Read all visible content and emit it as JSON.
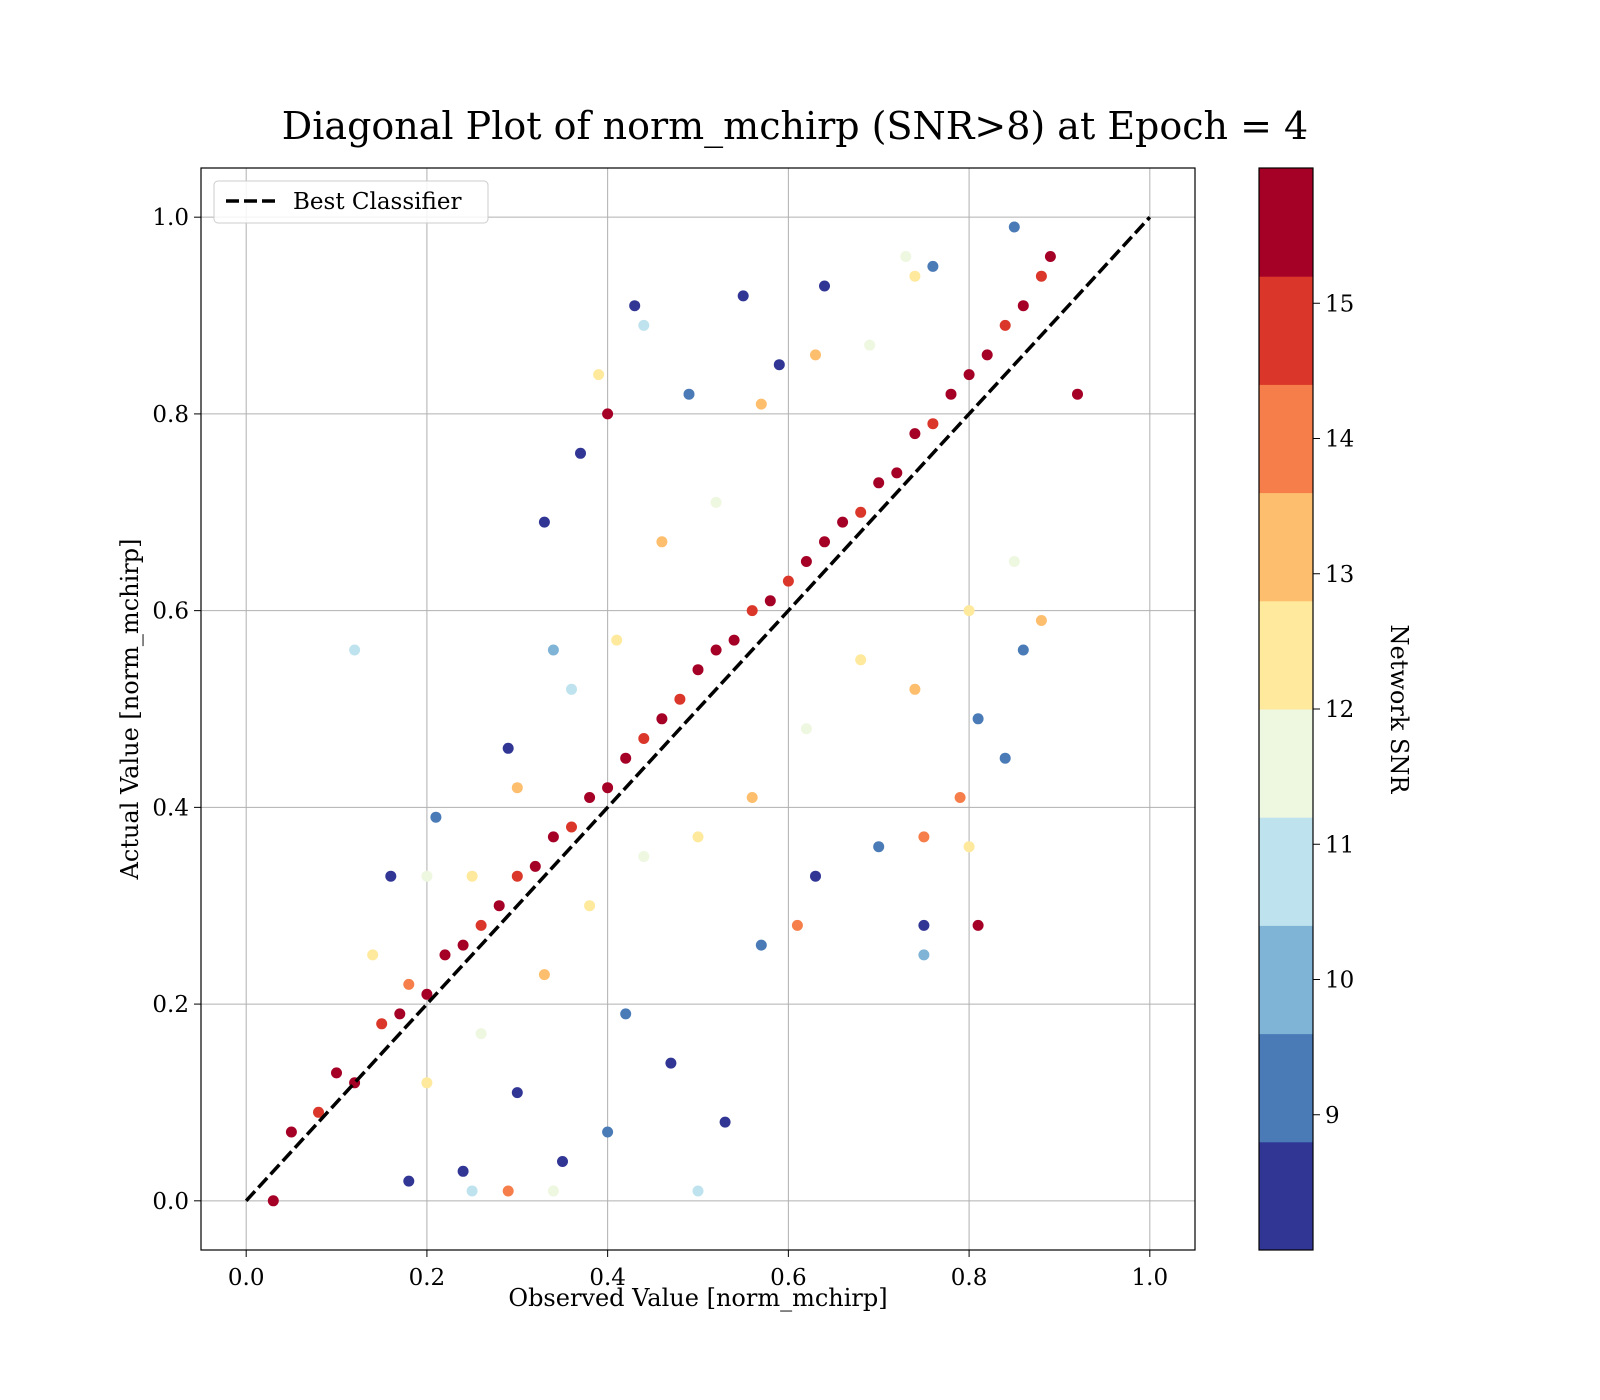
{
  "chart_data": {
    "type": "scatter",
    "title": "Diagonal Plot of norm_mchirp (SNR>8) at Epoch = 4",
    "xlabel": "Observed Value [norm_mchirp]",
    "ylabel": "Actual Value [norm_mchirp]",
    "xlim": [
      -0.05,
      1.05
    ],
    "ylim": [
      -0.05,
      1.05
    ],
    "x_ticks": [
      "0.0",
      "0.2",
      "0.4",
      "0.6",
      "0.8",
      "1.0"
    ],
    "y_ticks": [
      "0.0",
      "0.2",
      "0.4",
      "0.6",
      "0.8",
      "1.0"
    ],
    "grid": true,
    "legend": {
      "position": "top-left",
      "entries": [
        "Best Classifier"
      ]
    },
    "reference_line": {
      "name": "Best Classifier",
      "from": [
        0.0,
        0.0
      ],
      "to": [
        1.0,
        1.0
      ],
      "style": "dashed",
      "color": "#000000"
    },
    "colorbar": {
      "label": "Network SNR",
      "range": [
        8.0,
        16.0
      ],
      "tick_labels": [
        "9",
        "10",
        "11",
        "12",
        "13",
        "14",
        "15"
      ],
      "bands": [
        "#313695",
        "#4a7bb7",
        "#80b4d6",
        "#bfe3ee",
        "#eef7e0",
        "#fee99d",
        "#fdbe6e",
        "#f67e4b",
        "#da372a",
        "#a50026"
      ]
    },
    "series": [
      {
        "columns": [
          "x",
          "y",
          "snr"
        ],
        "points": [
          [
            0.03,
            0.0,
            15.5
          ],
          [
            0.05,
            0.07,
            15.2
          ],
          [
            0.08,
            0.09,
            14.6
          ],
          [
            0.1,
            0.13,
            15.5
          ],
          [
            0.12,
            0.12,
            15.8
          ],
          [
            0.15,
            0.18,
            15.1
          ],
          [
            0.17,
            0.19,
            15.6
          ],
          [
            0.18,
            0.22,
            14.2
          ],
          [
            0.2,
            0.21,
            15.7
          ],
          [
            0.22,
            0.25,
            15.3
          ],
          [
            0.24,
            0.26,
            15.9
          ],
          [
            0.26,
            0.28,
            14.8
          ],
          [
            0.28,
            0.3,
            15.5
          ],
          [
            0.3,
            0.33,
            15.1
          ],
          [
            0.32,
            0.34,
            15.8
          ],
          [
            0.34,
            0.37,
            15.4
          ],
          [
            0.36,
            0.38,
            14.5
          ],
          [
            0.38,
            0.41,
            15.9
          ],
          [
            0.4,
            0.42,
            15.2
          ],
          [
            0.42,
            0.45,
            15.7
          ],
          [
            0.44,
            0.47,
            15.0
          ],
          [
            0.46,
            0.49,
            15.6
          ],
          [
            0.48,
            0.51,
            14.9
          ],
          [
            0.5,
            0.54,
            15.8
          ],
          [
            0.52,
            0.56,
            15.3
          ],
          [
            0.54,
            0.57,
            15.9
          ],
          [
            0.56,
            0.6,
            15.1
          ],
          [
            0.58,
            0.61,
            15.6
          ],
          [
            0.6,
            0.63,
            14.7
          ],
          [
            0.62,
            0.65,
            15.8
          ],
          [
            0.64,
            0.67,
            15.4
          ],
          [
            0.66,
            0.69,
            15.9
          ],
          [
            0.68,
            0.7,
            14.8
          ],
          [
            0.7,
            0.73,
            15.5
          ],
          [
            0.72,
            0.74,
            15.2
          ],
          [
            0.74,
            0.78,
            15.7
          ],
          [
            0.76,
            0.79,
            14.9
          ],
          [
            0.78,
            0.82,
            15.6
          ],
          [
            0.8,
            0.84,
            15.3
          ],
          [
            0.82,
            0.86,
            15.8
          ],
          [
            0.84,
            0.89,
            14.6
          ],
          [
            0.86,
            0.91,
            15.5
          ],
          [
            0.88,
            0.94,
            15.1
          ],
          [
            0.89,
            0.96,
            15.7
          ],
          [
            0.14,
            0.25,
            12.4
          ],
          [
            0.2,
            0.33,
            11.5
          ],
          [
            0.25,
            0.33,
            12.2
          ],
          [
            0.3,
            0.42,
            13.1
          ],
          [
            0.36,
            0.52,
            11.2
          ],
          [
            0.41,
            0.57,
            12.6
          ],
          [
            0.46,
            0.67,
            13.4
          ],
          [
            0.52,
            0.71,
            11.6
          ],
          [
            0.57,
            0.81,
            12.8
          ],
          [
            0.63,
            0.86,
            13.0
          ],
          [
            0.69,
            0.87,
            11.4
          ],
          [
            0.74,
            0.94,
            12.5
          ],
          [
            0.2,
            0.12,
            12.3
          ],
          [
            0.26,
            0.17,
            11.4
          ],
          [
            0.33,
            0.23,
            13.2
          ],
          [
            0.38,
            0.3,
            12.1
          ],
          [
            0.44,
            0.35,
            11.3
          ],
          [
            0.5,
            0.37,
            12.7
          ],
          [
            0.56,
            0.41,
            13.3
          ],
          [
            0.62,
            0.48,
            11.7
          ],
          [
            0.68,
            0.55,
            12.4
          ],
          [
            0.74,
            0.52,
            13.1
          ],
          [
            0.8,
            0.6,
            12.2
          ],
          [
            0.85,
            0.65,
            11.6
          ],
          [
            0.88,
            0.59,
            12.9
          ],
          [
            0.16,
            0.33,
            8.3
          ],
          [
            0.21,
            0.39,
            9.4
          ],
          [
            0.29,
            0.46,
            8.6
          ],
          [
            0.33,
            0.69,
            8.2
          ],
          [
            0.37,
            0.76,
            8.5
          ],
          [
            0.43,
            0.91,
            8.3
          ],
          [
            0.49,
            0.82,
            9.2
          ],
          [
            0.55,
            0.92,
            8.4
          ],
          [
            0.59,
            0.85,
            8.7
          ],
          [
            0.64,
            0.93,
            8.2
          ],
          [
            0.76,
            0.95,
            9.3
          ],
          [
            0.18,
            0.02,
            8.4
          ],
          [
            0.24,
            0.03,
            8.6
          ],
          [
            0.3,
            0.11,
            8.3
          ],
          [
            0.35,
            0.04,
            8.5
          ],
          [
            0.42,
            0.19,
            9.1
          ],
          [
            0.47,
            0.14,
            8.4
          ],
          [
            0.53,
            0.08,
            8.2
          ],
          [
            0.57,
            0.26,
            9.4
          ],
          [
            0.63,
            0.33,
            8.6
          ],
          [
            0.7,
            0.36,
            9.2
          ],
          [
            0.75,
            0.28,
            8.3
          ],
          [
            0.81,
            0.49,
            9.5
          ],
          [
            0.84,
            0.45,
            8.8
          ],
          [
            0.86,
            0.56,
            9.1
          ],
          [
            0.12,
            0.56,
            10.6
          ],
          [
            0.34,
            0.56,
            10.2
          ],
          [
            0.44,
            0.89,
            10.8
          ],
          [
            0.25,
            0.01,
            10.4
          ],
          [
            0.29,
            0.01,
            13.9
          ],
          [
            0.34,
            0.01,
            11.7
          ],
          [
            0.4,
            0.07,
            9.6
          ],
          [
            0.5,
            0.01,
            10.9
          ],
          [
            0.61,
            0.28,
            14.1
          ],
          [
            0.75,
            0.37,
            13.7
          ],
          [
            0.75,
            0.25,
            10.3
          ],
          [
            0.79,
            0.41,
            13.9
          ],
          [
            0.8,
            0.36,
            12.1
          ],
          [
            0.81,
            0.28,
            15.8
          ],
          [
            0.85,
            0.99,
            9.1
          ],
          [
            0.92,
            0.82,
            15.7
          ],
          [
            0.4,
            0.8,
            15.9
          ],
          [
            0.39,
            0.84,
            12.6
          ],
          [
            0.73,
            0.96,
            11.3
          ]
        ]
      }
    ]
  }
}
